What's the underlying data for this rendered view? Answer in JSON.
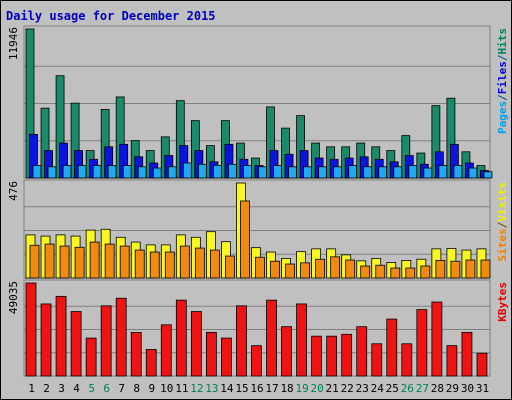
{
  "chart_data": {
    "type": "bar",
    "title": "Daily usage for December 2015",
    "categories": [
      "1",
      "2",
      "3",
      "4",
      "5",
      "6",
      "7",
      "8",
      "9",
      "10",
      "11",
      "12",
      "13",
      "14",
      "15",
      "16",
      "17",
      "18",
      "19",
      "20",
      "21",
      "22",
      "23",
      "24",
      "25",
      "26",
      "27",
      "28",
      "29",
      "30",
      "31"
    ],
    "weekend_days": [
      "5",
      "6",
      "12",
      "13",
      "19",
      "20",
      "26",
      "27"
    ],
    "panels": [
      {
        "id": "hits-files-pages",
        "max_label": "11946",
        "ylim": [
          0,
          11946
        ],
        "grid": true,
        "side_legend": [
          {
            "text": "Pages",
            "color": "#00a0f0"
          },
          {
            "text": "/",
            "color": "#004f8f"
          },
          {
            "text": "Files",
            "color": "#0000e0"
          },
          {
            "text": "/",
            "color": "#004f8f"
          },
          {
            "text": "Hits",
            "color": "#008060"
          }
        ],
        "series": [
          {
            "name": "Hits",
            "color": "#1a8a6a",
            "values": [
              11946,
              5600,
              8200,
              6000,
              2200,
              5500,
              6500,
              3000,
              2200,
              3300,
              6200,
              4600,
              2600,
              4600,
              2800,
              1600,
              5700,
              4000,
              5000,
              2800,
              2500,
              2500,
              2800,
              2500,
              2200,
              3400,
              2000,
              5800,
              6400,
              2100,
              1000
            ]
          },
          {
            "name": "Files",
            "color": "#0a14e0",
            "values": [
              3500,
              2200,
              2800,
              2200,
              1500,
              2500,
              2700,
              1700,
              1200,
              1800,
              2600,
              2200,
              1300,
              2700,
              1500,
              1000,
              2200,
              1900,
              2200,
              1600,
              1500,
              1600,
              1700,
              1500,
              1300,
              1800,
              1100,
              2100,
              2700,
              1200,
              600
            ]
          },
          {
            "name": "Pages",
            "color": "#20a8f0",
            "values": [
              1000,
              900,
              1000,
              1000,
              1000,
              1000,
              1000,
              900,
              800,
              900,
              1200,
              1100,
              1000,
              1100,
              1000,
              900,
              1000,
              900,
              900,
              900,
              900,
              1000,
              900,
              900,
              900,
              1000,
              800,
              1000,
              1000,
              800,
              500
            ]
          }
        ]
      },
      {
        "id": "visits-sites",
        "max_label": "476",
        "ylim": [
          0,
          476
        ],
        "grid": true,
        "side_legend": [
          {
            "text": "Sites",
            "color": "#f08000"
          },
          {
            "text": "/",
            "color": "#804000"
          },
          {
            "text": "Visits",
            "color": "#f0f000"
          }
        ],
        "series": [
          {
            "name": "Visits",
            "color": "#f8f820",
            "values": [
              216,
              210,
              216,
              210,
              240,
              244,
              204,
              180,
              166,
              166,
              216,
              204,
              232,
              182,
              476,
              152,
              130,
              98,
              132,
              146,
              146,
              116,
              86,
              98,
              78,
              88,
              94,
              146,
              148,
              140,
              146
            ]
          },
          {
            "name": "Sites",
            "color": "#f08a10",
            "values": [
              164,
              170,
              160,
              154,
              180,
              170,
              160,
              140,
              130,
              130,
              160,
              150,
              140,
              110,
              386,
              104,
              84,
              70,
              76,
              94,
              106,
              90,
              60,
              64,
              50,
              50,
              60,
              88,
              84,
              90,
              90
            ]
          }
        ]
      },
      {
        "id": "kbytes",
        "max_label": "49035",
        "ylim": [
          0,
          49035
        ],
        "grid": true,
        "side_legend": [
          {
            "text": "KBytes",
            "color": "#e00000"
          }
        ],
        "series": [
          {
            "name": "KBytes",
            "color": "#ee1414",
            "values": [
              49035,
              38000,
              42000,
              34000,
              20000,
              37000,
              41000,
              23000,
              14000,
              27000,
              40000,
              34000,
              23000,
              20000,
              37000,
              16000,
              40000,
              26000,
              38000,
              21000,
              21000,
              22000,
              26000,
              17000,
              30000,
              17000,
              35000,
              39000,
              16000,
              23000,
              12000
            ]
          }
        ]
      }
    ]
  }
}
